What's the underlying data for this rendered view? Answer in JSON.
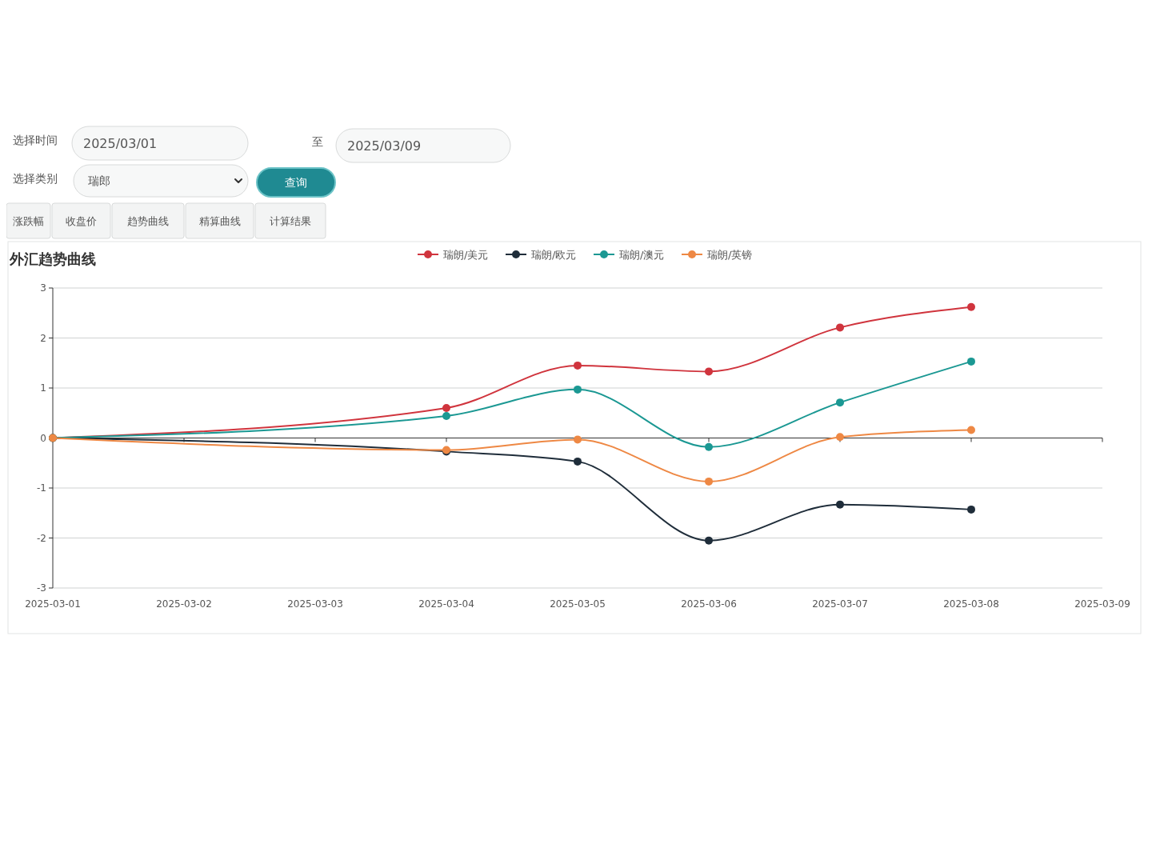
{
  "chart_data": [
    {
      "type": "other",
      "annotations": [
        "选择时间",
        "2025/03/01",
        "至",
        "2025/03/09",
        "选择类别",
        "瑞郎",
        "查询",
        "涨跌幅",
        "收盘价",
        "趋势曲线",
        "精算曲线",
        "计算结果"
      ]
    },
    {
      "type": "line",
      "title": "外汇趋势曲线",
      "x": [
        "2025-03-01",
        "2025-03-04",
        "2025-03-05",
        "2025-03-06",
        "2025-03-07",
        "2025-03-08"
      ],
      "series": [
        {
          "name": "瑞朗/美元",
          "color": "#d0343d",
          "values": [
            0,
            0.6,
            1.45,
            1.33,
            2.21,
            2.62
          ]
        },
        {
          "name": "瑞朗/欧元",
          "color": "#1f2d3a",
          "values": [
            0,
            -0.27,
            -0.47,
            -2.05,
            -1.33,
            -1.43
          ]
        },
        {
          "name": "瑞朗/澳元",
          "color": "#1b9893",
          "values": [
            0,
            0.44,
            0.97,
            -0.18,
            0.71,
            1.53
          ]
        },
        {
          "name": "瑞朗/英镑",
          "color": "#ee8844",
          "values": [
            0,
            -0.24,
            -0.03,
            -0.87,
            0.02,
            0.16
          ]
        }
      ],
      "xlim": [
        "2025-03-01",
        "2025-03-09"
      ],
      "xticks": [
        "2025-03-01",
        "2025-03-02",
        "2025-03-03",
        "2025-03-04",
        "2025-03-05",
        "2025-03-06",
        "2025-03-07",
        "2025-03-08",
        "2025-03-09"
      ],
      "ylim": [
        -3,
        3
      ],
      "yticks": [
        -3,
        -2,
        -1,
        0,
        1,
        2,
        3
      ],
      "grid": "y",
      "legend": "top",
      "marker": "circle",
      "line_style": "solid"
    }
  ]
}
